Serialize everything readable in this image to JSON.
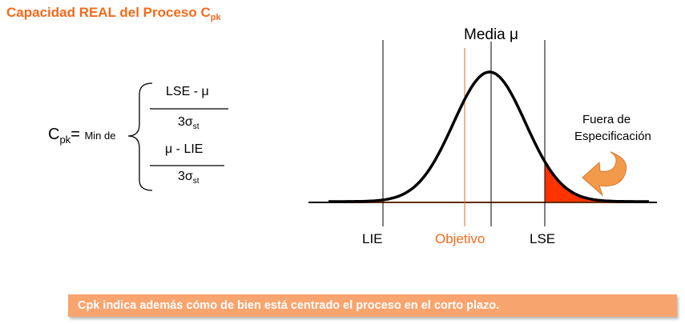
{
  "title": {
    "text": "Capacidad REAL del Proceso C",
    "sub": "pk"
  },
  "formula": {
    "lhs_main": "C",
    "lhs_sub": "pk",
    "equals_min": "= ",
    "min_de": "Min de",
    "term1_num": "LSE - μ",
    "term1_den_main": "3σ",
    "term1_den_sub": "st",
    "term2_num": "μ - LIE",
    "term2_den_main": "3σ",
    "term2_den_sub": "st"
  },
  "diagram": {
    "media_label": "Media μ",
    "lie_label": "LIE",
    "objetivo_label": "Objetivo",
    "lse_label": "LSE",
    "fuera_line1": "Fuera de",
    "fuera_line2": "Especificación",
    "colors": {
      "curve": "#000000",
      "objetivo": "#f26a1b",
      "tail": "#ff3300",
      "arrow": "#f39a4a"
    }
  },
  "banner": {
    "text": "Cpk indica además cómo de bien está centrado el proceso en el corto plazo."
  }
}
